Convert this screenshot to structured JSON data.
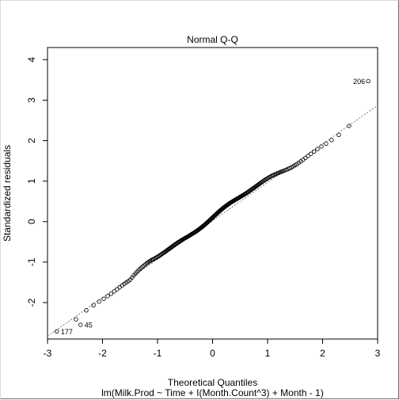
{
  "chart_data": {
    "type": "scatter",
    "title": "Normal Q-Q",
    "xlabel": "Theoretical Quantiles",
    "ylabel": "Standardized residuals",
    "subtitle": "lm(Milk.Prod ~ Time + I(Month.Count^3) + Month - 1)",
    "xlim": [
      -3.0,
      3.0
    ],
    "ylim": [
      -2.9,
      4.3
    ],
    "x_ticks": [
      -3,
      -2,
      -1,
      0,
      1,
      2,
      3
    ],
    "y_ticks": [
      -2,
      -1,
      0,
      1,
      2,
      3,
      4
    ],
    "reference_line": {
      "slope": 0.95,
      "intercept": 0.02,
      "style": "dotted",
      "color": "#777777"
    },
    "point_labels": [
      {
        "label": "206",
        "x": 2.83,
        "y": 3.47
      },
      {
        "label": "177",
        "x": -2.83,
        "y": -2.71
      },
      {
        "label": "45",
        "x": -2.4,
        "y": -2.55
      }
    ],
    "grid": false,
    "legend": "none"
  }
}
